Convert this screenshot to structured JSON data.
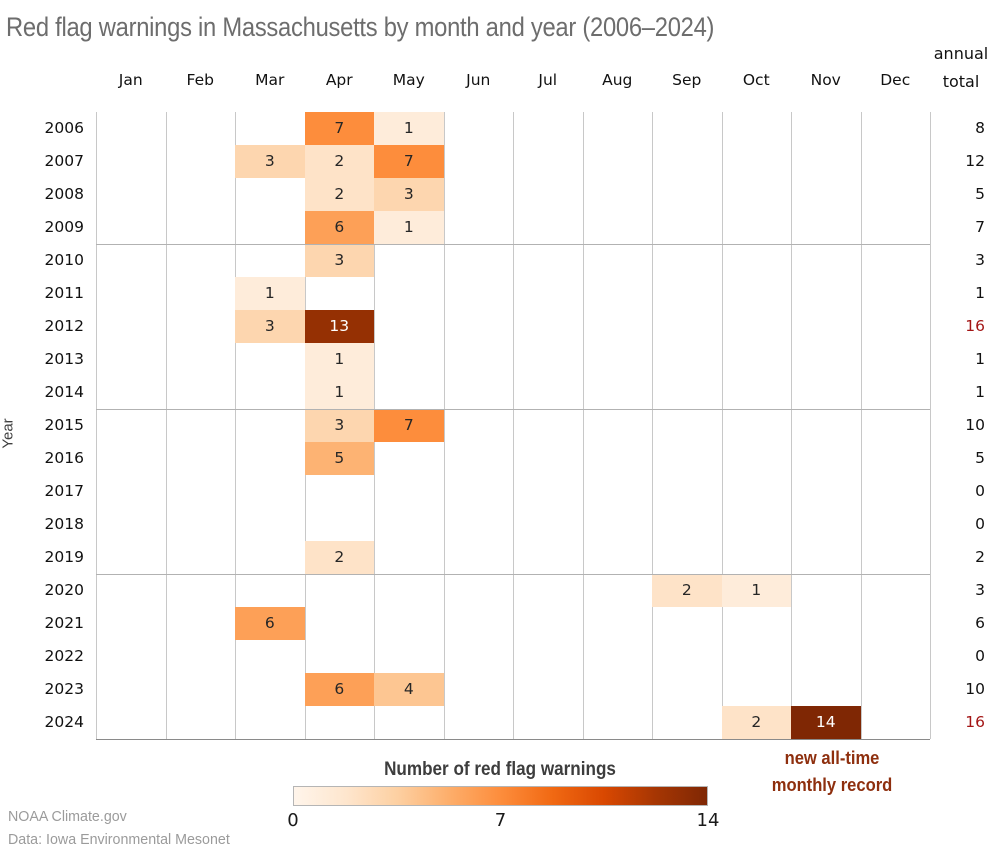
{
  "title": "Red flag warnings in Massachusetts by month and year (2006–2024)",
  "axis": {
    "y_label": "Year",
    "annual_header_line1": "annual",
    "annual_header_line2": "total"
  },
  "chart_data": {
    "type": "heatmap",
    "x_categories": [
      "Jan",
      "Feb",
      "Mar",
      "Apr",
      "May",
      "Jun",
      "Jul",
      "Aug",
      "Sep",
      "Oct",
      "Nov",
      "Dec"
    ],
    "y_categories": [
      "2006",
      "2007",
      "2008",
      "2009",
      "2010",
      "2011",
      "2012",
      "2013",
      "2014",
      "2015",
      "2016",
      "2017",
      "2018",
      "2019",
      "2020",
      "2021",
      "2022",
      "2023",
      "2024"
    ],
    "value_domain": [
      0,
      14
    ],
    "colormap_stops": [
      "#fff5eb",
      "#fee6ce",
      "#fdd0a2",
      "#fdae6b",
      "#fd8d3c",
      "#f16913",
      "#d94801",
      "#a63603",
      "#7f2704"
    ],
    "cells": [
      {
        "year": "2006",
        "month": "Apr",
        "value": 7
      },
      {
        "year": "2006",
        "month": "May",
        "value": 1
      },
      {
        "year": "2007",
        "month": "Mar",
        "value": 3
      },
      {
        "year": "2007",
        "month": "Apr",
        "value": 2
      },
      {
        "year": "2007",
        "month": "May",
        "value": 7
      },
      {
        "year": "2008",
        "month": "Apr",
        "value": 2
      },
      {
        "year": "2008",
        "month": "May",
        "value": 3
      },
      {
        "year": "2009",
        "month": "Apr",
        "value": 6
      },
      {
        "year": "2009",
        "month": "May",
        "value": 1
      },
      {
        "year": "2010",
        "month": "Apr",
        "value": 3
      },
      {
        "year": "2011",
        "month": "Mar",
        "value": 1
      },
      {
        "year": "2012",
        "month": "Mar",
        "value": 3
      },
      {
        "year": "2012",
        "month": "Apr",
        "value": 13
      },
      {
        "year": "2013",
        "month": "Apr",
        "value": 1
      },
      {
        "year": "2014",
        "month": "Apr",
        "value": 1
      },
      {
        "year": "2015",
        "month": "Apr",
        "value": 3
      },
      {
        "year": "2015",
        "month": "May",
        "value": 7
      },
      {
        "year": "2016",
        "month": "Apr",
        "value": 5
      },
      {
        "year": "2019",
        "month": "Apr",
        "value": 2
      },
      {
        "year": "2020",
        "month": "Sep",
        "value": 2
      },
      {
        "year": "2020",
        "month": "Oct",
        "value": 1
      },
      {
        "year": "2021",
        "month": "Mar",
        "value": 6
      },
      {
        "year": "2023",
        "month": "Apr",
        "value": 6
      },
      {
        "year": "2023",
        "month": "May",
        "value": 4
      },
      {
        "year": "2024",
        "month": "Oct",
        "value": 2
      },
      {
        "year": "2024",
        "month": "Nov",
        "value": 14
      }
    ],
    "annual_totals": [
      {
        "year": "2006",
        "total": "8",
        "record": false
      },
      {
        "year": "2007",
        "total": "12",
        "record": false
      },
      {
        "year": "2008",
        "total": "5",
        "record": false
      },
      {
        "year": "2009",
        "total": "7",
        "record": false
      },
      {
        "year": "2010",
        "total": "3",
        "record": false
      },
      {
        "year": "2011",
        "total": "1",
        "record": false
      },
      {
        "year": "2012",
        "total": "16",
        "record": true
      },
      {
        "year": "2013",
        "total": "1",
        "record": false
      },
      {
        "year": "2014",
        "total": "1",
        "record": false
      },
      {
        "year": "2015",
        "total": "10",
        "record": false
      },
      {
        "year": "2016",
        "total": "5",
        "record": false
      },
      {
        "year": "2017",
        "total": "0",
        "record": false
      },
      {
        "year": "2018",
        "total": "0",
        "record": false
      },
      {
        "year": "2019",
        "total": "2",
        "record": false
      },
      {
        "year": "2020",
        "total": "3",
        "record": false
      },
      {
        "year": "2021",
        "total": "6",
        "record": false
      },
      {
        "year": "2022",
        "total": "0",
        "record": false
      },
      {
        "year": "2023",
        "total": "10",
        "record": false
      },
      {
        "year": "2024",
        "total": "16",
        "record": true
      }
    ],
    "year_group_separators_after": [
      "2009",
      "2014",
      "2019"
    ]
  },
  "legend": {
    "title": "Number of red flag warnings",
    "ticks": [
      "0",
      "7",
      "14"
    ]
  },
  "annotation": {
    "line1": "new all-time",
    "line2": "monthly record",
    "color": "#8e2f0e"
  },
  "footer": {
    "line1": "NOAA Climate.gov",
    "line2": "Data: Iowa Environmental Mesonet"
  },
  "colors": {
    "record_total": "#a31515",
    "cell_text_dark": "#262626",
    "cell_text_light": "#ffffff"
  }
}
